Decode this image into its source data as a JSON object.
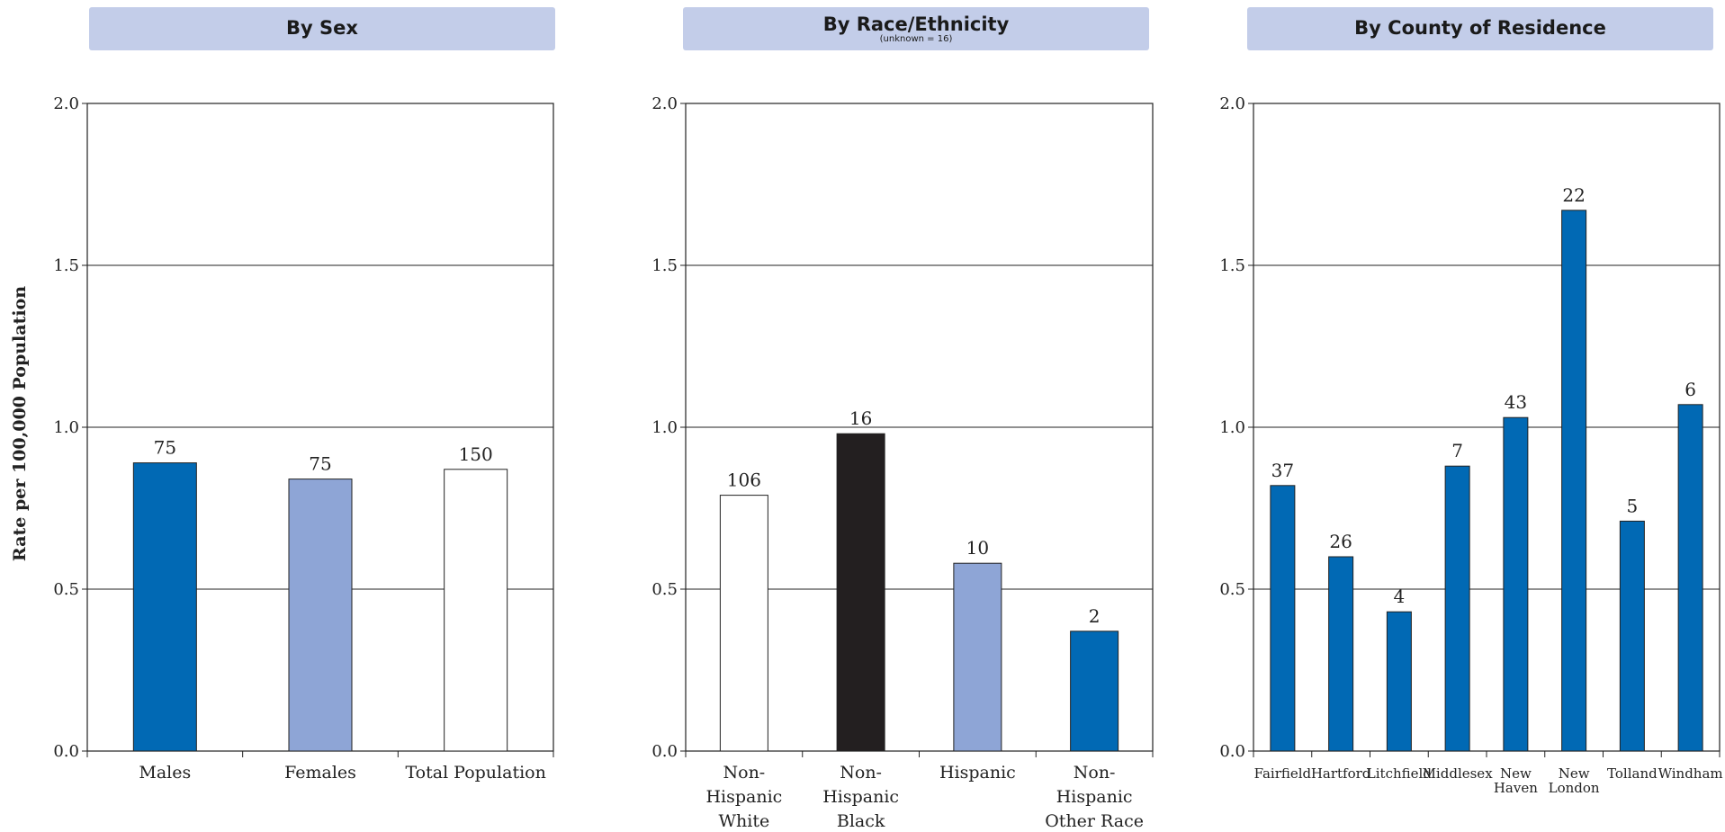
{
  "ylabel": "Rate per 100,000 Population",
  "chart_data": [
    {
      "type": "bar",
      "title": "By Sex",
      "subtitle": "",
      "ylabel": "Rate per 100,000 Population",
      "ylim": [
        0,
        2.0
      ],
      "yticks": [
        "0.0",
        "0.5",
        "1.0",
        "1.5",
        "2.0"
      ],
      "grid": true,
      "categories": [
        [
          "Males"
        ],
        [
          "Females"
        ],
        [
          "Total Population"
        ]
      ],
      "values": [
        0.89,
        0.84,
        0.87
      ],
      "data_labels": [
        "75",
        "75",
        "150"
      ],
      "colors": [
        "#0169b4",
        "#8ea5d6",
        "#ffffff"
      ]
    },
    {
      "type": "bar",
      "title": "By Race/Ethnicity",
      "subtitle": "(unknown = 16)",
      "ylim": [
        0,
        2.0
      ],
      "yticks": [
        "0.0",
        "0.5",
        "1.0",
        "1.5",
        "2.0"
      ],
      "grid": true,
      "categories": [
        [
          "Non-",
          "Hispanic",
          "White"
        ],
        [
          "Non-",
          "Hispanic",
          "Black"
        ],
        [
          "Hispanic"
        ],
        [
          "Non-",
          "Hispanic",
          "Other Race"
        ]
      ],
      "values": [
        0.79,
        0.98,
        0.58,
        0.37
      ],
      "data_labels": [
        "106",
        "16",
        "10",
        "2"
      ],
      "colors": [
        "#ffffff",
        "#231f20",
        "#8ea5d6",
        "#0169b4"
      ]
    },
    {
      "type": "bar",
      "title": "By County of Residence",
      "subtitle": "",
      "ylim": [
        0,
        2.0
      ],
      "yticks": [
        "0.0",
        "0.5",
        "1.0",
        "1.5",
        "2.0"
      ],
      "grid": true,
      "categories": [
        [
          "Fairfield"
        ],
        [
          "Hartford"
        ],
        [
          "Litchfield"
        ],
        [
          "Middlesex"
        ],
        [
          "New",
          "Haven"
        ],
        [
          "New",
          "London"
        ],
        [
          "Tolland"
        ],
        [
          "Windham"
        ]
      ],
      "values": [
        0.82,
        0.6,
        0.43,
        0.88,
        1.03,
        1.67,
        0.71,
        1.07
      ],
      "data_labels": [
        "37",
        "26",
        "4",
        "7",
        "43",
        "22",
        "5",
        "6"
      ],
      "colors": [
        "#0169b4",
        "#0169b4",
        "#0169b4",
        "#0169b4",
        "#0169b4",
        "#0169b4",
        "#0169b4",
        "#0169b4"
      ]
    }
  ]
}
